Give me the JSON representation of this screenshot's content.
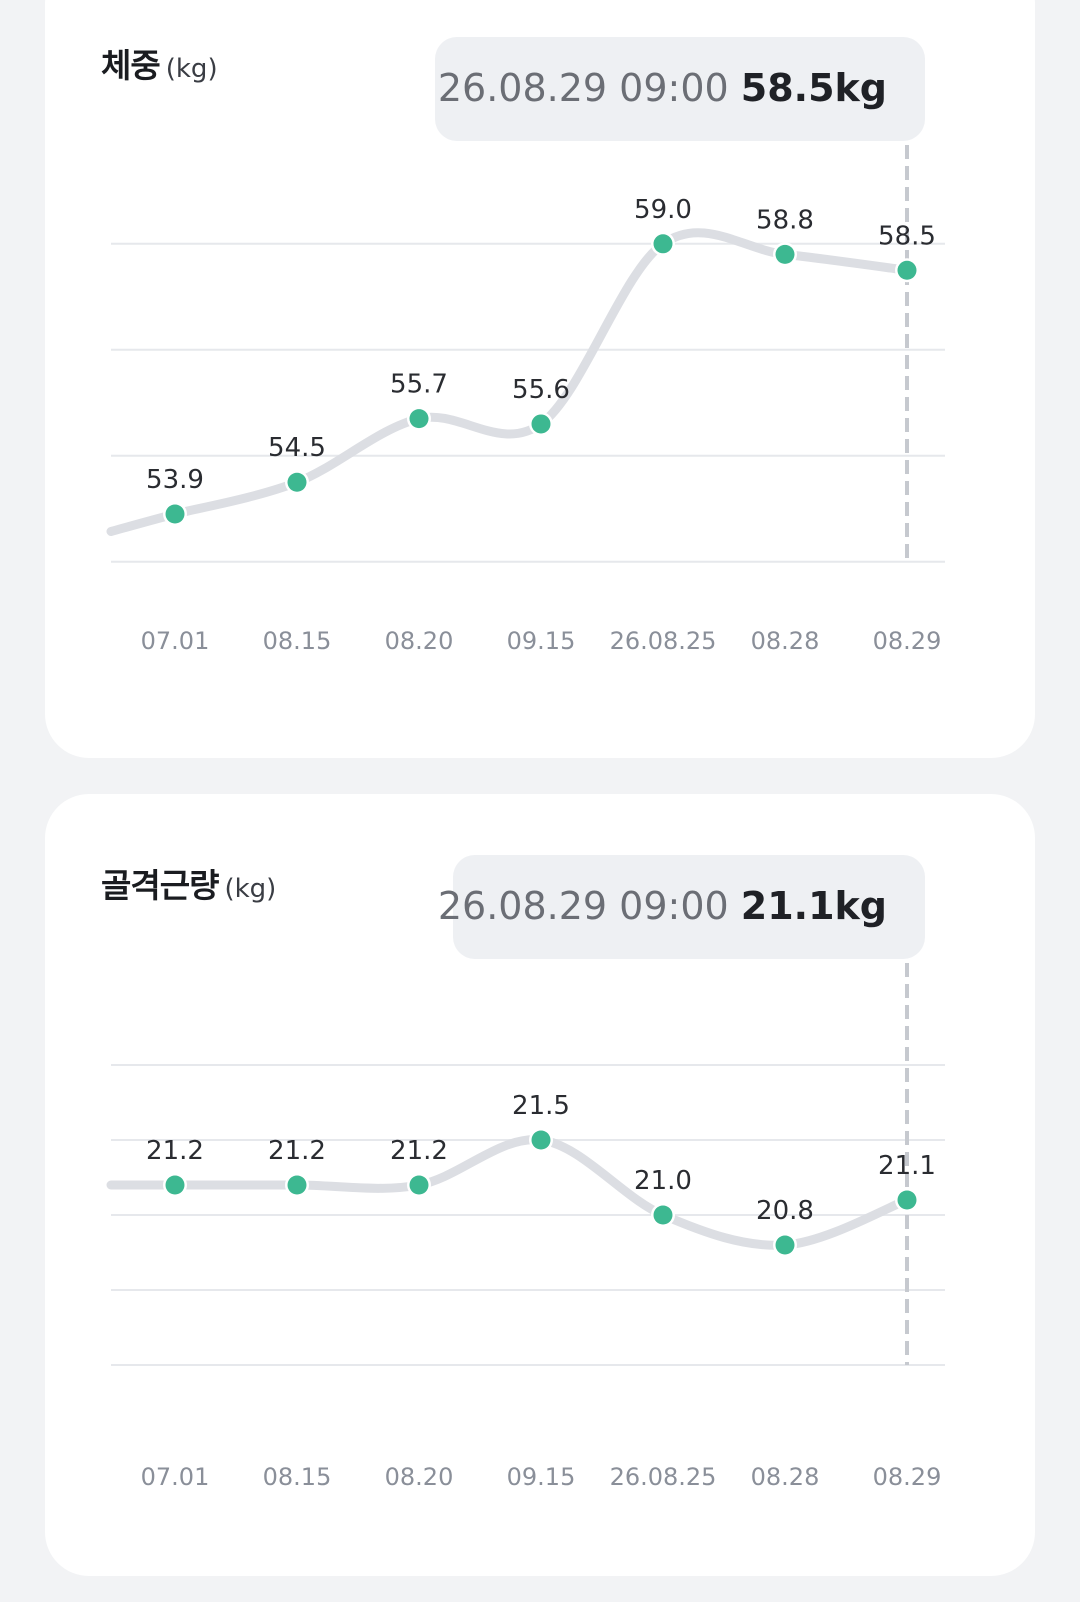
{
  "cards": [
    {
      "title": "체중",
      "unit": "(kg)",
      "tooltip": {
        "date": "26.08.29 09:00",
        "value": "58.5kg"
      },
      "chart_data": {
        "type": "line",
        "title": "체중",
        "ylabel": "(kg)",
        "categories": [
          "07.01",
          "08.15",
          "08.20",
          "09.15",
          "26.08.25",
          "08.28",
          "08.29"
        ],
        "values": [
          53.9,
          54.5,
          55.7,
          55.6,
          59.0,
          58.8,
          58.5
        ],
        "value_labels": [
          "53.9",
          "54.5",
          "55.7",
          "55.6",
          "59.0",
          "58.8",
          "58.5"
        ],
        "ylim": [
          52.9,
          59.6
        ],
        "gridlines": [
          59.0,
          57.0,
          55.0,
          53.0
        ],
        "grid": true,
        "selected_index": 6,
        "line_color": "#dcdee3",
        "point_color": "#3db891"
      }
    },
    {
      "title": "골격근량",
      "unit": "(kg)",
      "tooltip": {
        "date": "26.08.29 09:00",
        "value": "21.1kg"
      },
      "chart_data": {
        "type": "line",
        "title": "골격근량",
        "ylabel": "(kg)",
        "categories": [
          "07.01",
          "08.15",
          "08.20",
          "09.15",
          "26.08.25",
          "08.28",
          "08.29"
        ],
        "values": [
          21.2,
          21.2,
          21.2,
          21.5,
          21.0,
          20.8,
          21.1
        ],
        "value_labels": [
          "21.2",
          "21.2",
          "21.2",
          "21.5",
          "21.0",
          "20.8",
          "21.1"
        ],
        "ylim": [
          19.8,
          22.0
        ],
        "gridlines": [
          22.0,
          21.5,
          21.0,
          20.5,
          20.0
        ],
        "grid": true,
        "selected_index": 6,
        "line_color": "#dcdee3",
        "point_color": "#3db891"
      }
    }
  ]
}
